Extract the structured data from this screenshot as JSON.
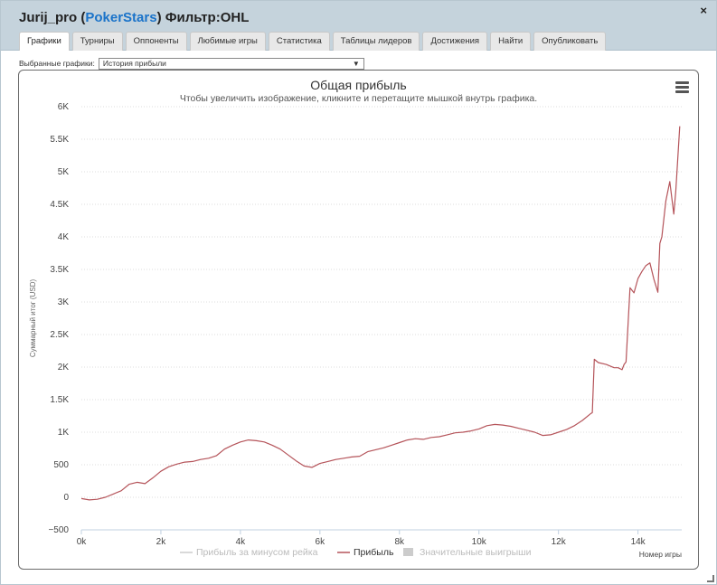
{
  "header": {
    "user": "Jurij_pro",
    "site": "PokerStars",
    "filter": "Фильтр:OHL",
    "close_label": "×"
  },
  "tabs": [
    {
      "label": "Графики",
      "active": true
    },
    {
      "label": "Турниры"
    },
    {
      "label": "Оппоненты"
    },
    {
      "label": "Любимые игры"
    },
    {
      "label": "Статистика"
    },
    {
      "label": "Таблицы лидеров"
    },
    {
      "label": "Достижения"
    },
    {
      "label": "Найти"
    },
    {
      "label": "Опубликовать"
    }
  ],
  "selector": {
    "label": "Выбранные графики:",
    "value": "История прибыли"
  },
  "colors": {
    "profit_line": "#b5545a",
    "grid": "#dddddd",
    "axis": "#c0d0e0"
  },
  "chart_data": {
    "type": "line",
    "title": "Общая прибыль",
    "subtitle": "Чтобы увеличить изображение, кликните и перетащите мышкой внутрь графика.",
    "ylabel": "Суммарный итог (USD)",
    "xlabel": "Номер игры",
    "xlim": [
      0,
      15100
    ],
    "ylim": [
      -500,
      6000
    ],
    "xticks": [
      0,
      2000,
      4000,
      6000,
      8000,
      10000,
      12000,
      14000
    ],
    "xtick_labels": [
      "0k",
      "2k",
      "4k",
      "6k",
      "8k",
      "10k",
      "12k",
      "14k"
    ],
    "yticks": [
      -500,
      0,
      500,
      1000,
      1500,
      2000,
      2500,
      3000,
      3500,
      4000,
      4500,
      5000,
      5500,
      6000
    ],
    "ytick_labels": [
      "−500",
      "0",
      "500",
      "1K",
      "1.5K",
      "2K",
      "2.5K",
      "3K",
      "3.5K",
      "4K",
      "4.5K",
      "5K",
      "5.5K",
      "6K"
    ],
    "grid": true,
    "legend_position": "bottom-center",
    "legend": [
      {
        "name": "Прибыль за минусом рейка",
        "visible": false,
        "symbol": "line"
      },
      {
        "name": "Прибыль",
        "visible": true,
        "symbol": "line"
      },
      {
        "name": "Значительные выигрыши",
        "visible": false,
        "symbol": "square"
      }
    ],
    "series": [
      {
        "name": "Прибыль",
        "x": [
          0,
          200,
          400,
          600,
          800,
          1000,
          1200,
          1400,
          1600,
          1800,
          2000,
          2200,
          2400,
          2600,
          2800,
          3000,
          3200,
          3400,
          3600,
          3800,
          4000,
          4200,
          4400,
          4600,
          4800,
          5000,
          5200,
          5400,
          5600,
          5800,
          6000,
          6200,
          6400,
          6600,
          6800,
          7000,
          7200,
          7400,
          7600,
          7800,
          8000,
          8200,
          8400,
          8600,
          8800,
          9000,
          9200,
          9400,
          9600,
          9800,
          10000,
          10200,
          10400,
          10600,
          10800,
          11000,
          11200,
          11400,
          11600,
          11800,
          12000,
          12200,
          12400,
          12600,
          12800,
          12850,
          12900,
          13000,
          13200,
          13400,
          13500,
          13600,
          13650,
          13700,
          13800,
          13900,
          14000,
          14100,
          14200,
          14300,
          14400,
          14500,
          14550,
          14600,
          14700,
          14800,
          14900,
          14950,
          15000,
          15050
        ],
        "y": [
          -20,
          -40,
          -30,
          0,
          50,
          100,
          200,
          230,
          210,
          300,
          400,
          470,
          510,
          540,
          550,
          580,
          600,
          640,
          740,
          800,
          850,
          880,
          870,
          850,
          800,
          740,
          650,
          560,
          480,
          460,
          520,
          550,
          580,
          600,
          620,
          630,
          700,
          730,
          760,
          800,
          840,
          880,
          900,
          890,
          920,
          930,
          960,
          990,
          1000,
          1020,
          1050,
          1100,
          1120,
          1110,
          1090,
          1060,
          1030,
          1000,
          950,
          960,
          1000,
          1040,
          1100,
          1180,
          1280,
          1300,
          2120,
          2070,
          2040,
          1990,
          1990,
          1960,
          2040,
          2080,
          3220,
          3140,
          3360,
          3470,
          3560,
          3600,
          3350,
          3150,
          3900,
          4000,
          4550,
          4850,
          4350,
          4700,
          5200,
          5700
        ]
      }
    ]
  }
}
